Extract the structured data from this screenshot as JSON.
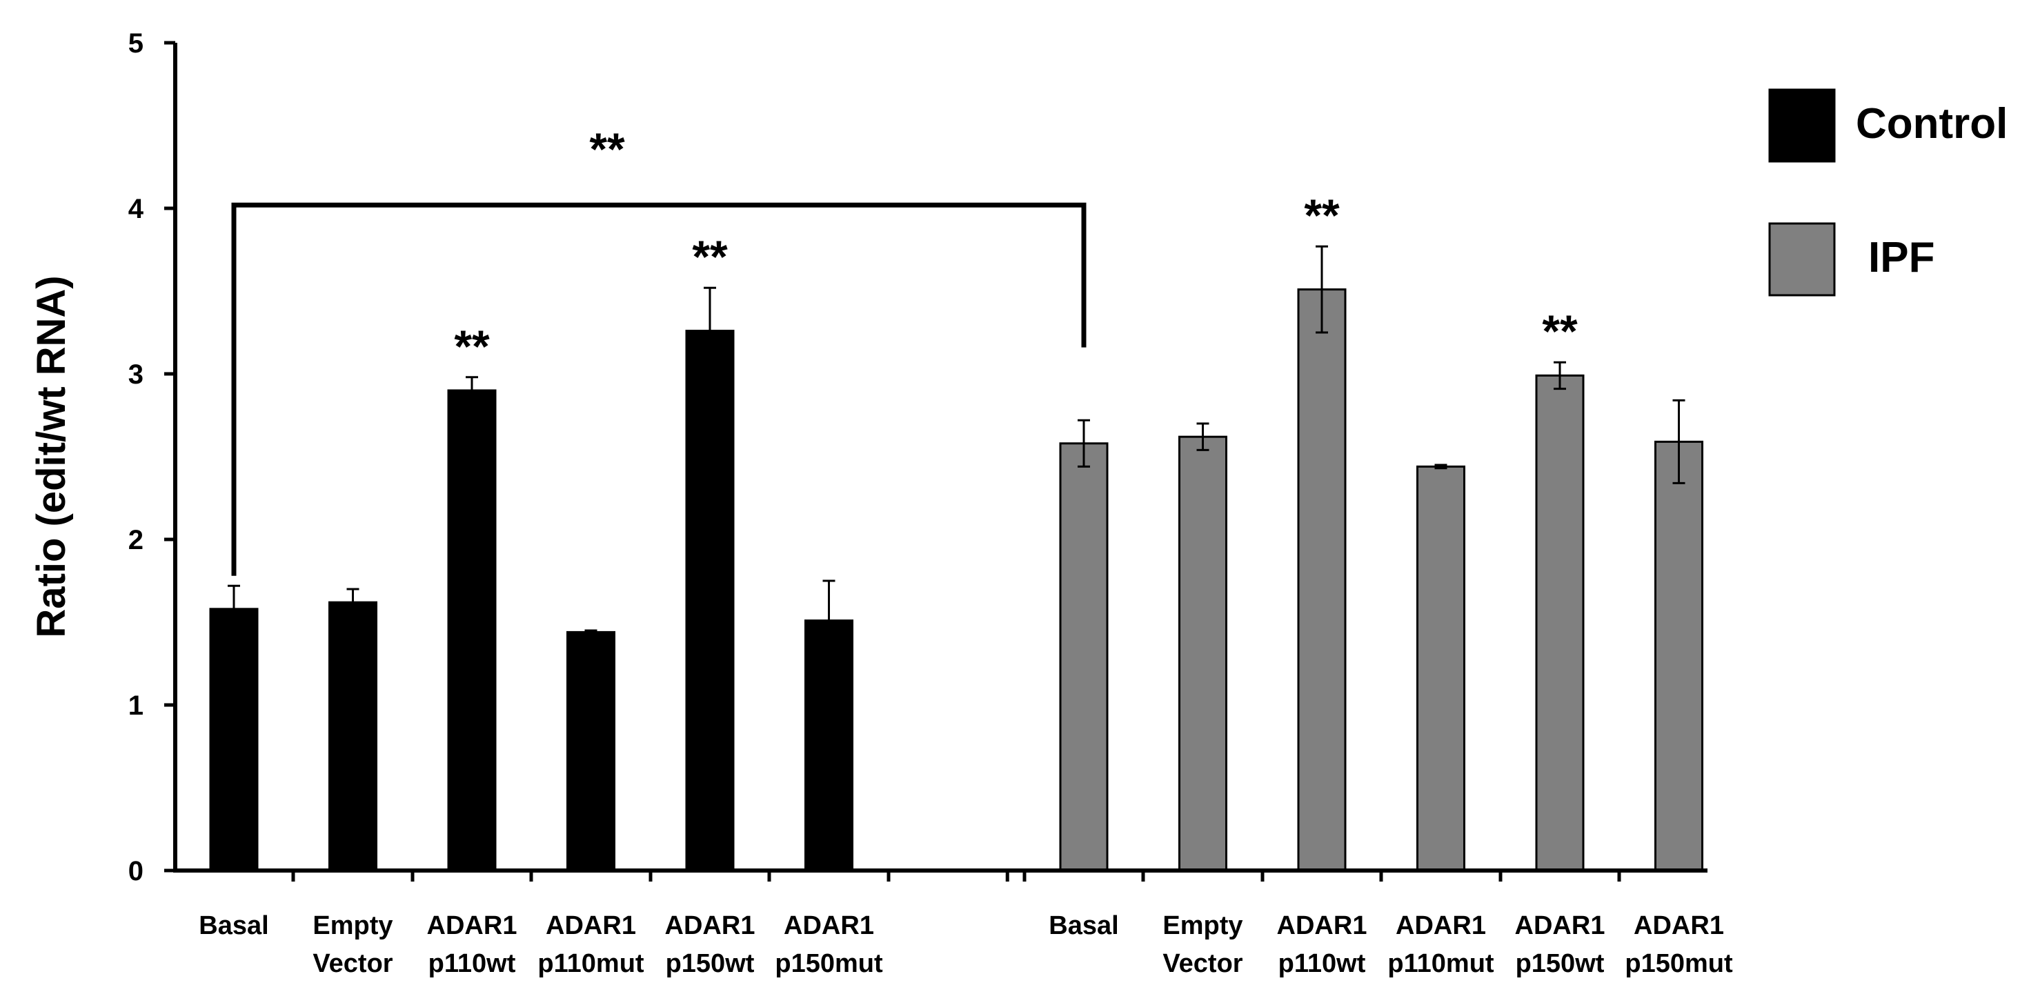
{
  "chart_data": {
    "type": "bar",
    "title": "",
    "xlabel": "",
    "ylabel": "Ratio (edit/wt RNA)",
    "ylim": [
      0,
      5
    ],
    "yticks": [
      "0",
      "1",
      "2",
      "3",
      "4",
      "5"
    ],
    "grid": false,
    "legend_position": "top-right",
    "categories": [
      [
        "Basal"
      ],
      [
        "Empty",
        "Vector"
      ],
      [
        "ADAR1",
        "p110wt"
      ],
      [
        "ADAR1",
        "p110mut"
      ],
      [
        "ADAR1",
        "p150wt"
      ],
      [
        "ADAR1",
        "p150mut"
      ]
    ],
    "series": [
      {
        "name": "Control",
        "color": "#000000",
        "values": [
          1.58,
          1.62,
          2.9,
          1.44,
          3.26,
          1.51
        ],
        "errors": [
          0.14,
          0.08,
          0.08,
          0.01,
          0.26,
          0.24
        ],
        "significance": [
          "",
          "",
          "**",
          "",
          "**",
          ""
        ]
      },
      {
        "name": "IPF",
        "color": "#808080",
        "values": [
          2.58,
          2.62,
          3.51,
          2.44,
          2.99,
          2.59
        ],
        "errors": [
          0.14,
          0.08,
          0.26,
          0.01,
          0.08,
          0.25
        ],
        "significance": [
          "",
          "",
          "**",
          "",
          "**",
          ""
        ]
      }
    ],
    "bracket": {
      "from": "Control Basal",
      "to": "IPF Basal",
      "at_value": 4.02,
      "label": "**"
    }
  }
}
